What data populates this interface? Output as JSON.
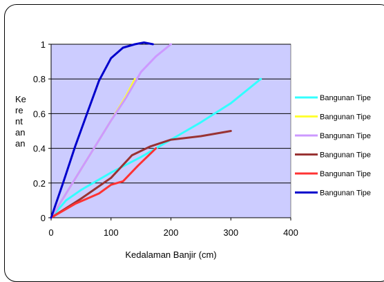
{
  "chart_data": {
    "type": "line",
    "title": "",
    "xlabel": "Kedalaman Banjir (cm)",
    "ylabel_lines": [
      "Ke",
      "re",
      "nt",
      "an",
      "an"
    ],
    "xlim": [
      0,
      400
    ],
    "ylim": [
      0,
      1
    ],
    "xticks": [
      "0",
      "100",
      "200",
      "300",
      "400"
    ],
    "yticks": [
      "0",
      "0.2",
      "0.4",
      "0.6",
      "0.8",
      "1"
    ],
    "grid": "horizontal",
    "legend_position": "right",
    "plot_background": "#ccccff",
    "series": [
      {
        "name": "Bangunan Tipe",
        "color": "#33ffff",
        "x": [
          0,
          25,
          50,
          100,
          150,
          200,
          250,
          300,
          350
        ],
        "y": [
          0,
          0.1,
          0.16,
          0.26,
          0.35,
          0.45,
          0.55,
          0.66,
          0.8
        ]
      },
      {
        "name": "Bangunan Tipe",
        "color": "#ffff33",
        "x": [
          0,
          25,
          50,
          75,
          100,
          125,
          140
        ],
        "y": [
          0,
          0.14,
          0.28,
          0.42,
          0.56,
          0.7,
          0.8
        ]
      },
      {
        "name": "Bangunan Tipe",
        "color": "#cc99ff",
        "x": [
          0,
          25,
          50,
          75,
          100,
          125,
          150,
          175,
          200
        ],
        "y": [
          0,
          0.14,
          0.28,
          0.42,
          0.56,
          0.69,
          0.84,
          0.93,
          1.0
        ]
      },
      {
        "name": "Bangunan Tipe",
        "color": "#993333",
        "x": [
          0,
          50,
          100,
          135,
          165,
          200,
          250,
          300
        ],
        "y": [
          0,
          0.11,
          0.23,
          0.36,
          0.41,
          0.45,
          0.47,
          0.5
        ]
      },
      {
        "name": "Bangunan Tipe",
        "color": "#ff3333",
        "x": [
          0,
          40,
          80,
          100,
          120,
          145,
          175
        ],
        "y": [
          0,
          0.08,
          0.14,
          0.19,
          0.21,
          0.3,
          0.4
        ]
      },
      {
        "name": "Bangunan Tipe",
        "color": "#0000cc",
        "x": [
          0,
          20,
          40,
          60,
          80,
          100,
          120,
          140,
          155,
          170
        ],
        "y": [
          0,
          0.2,
          0.41,
          0.6,
          0.79,
          0.92,
          0.98,
          1.0,
          1.01,
          1.0
        ]
      }
    ]
  }
}
